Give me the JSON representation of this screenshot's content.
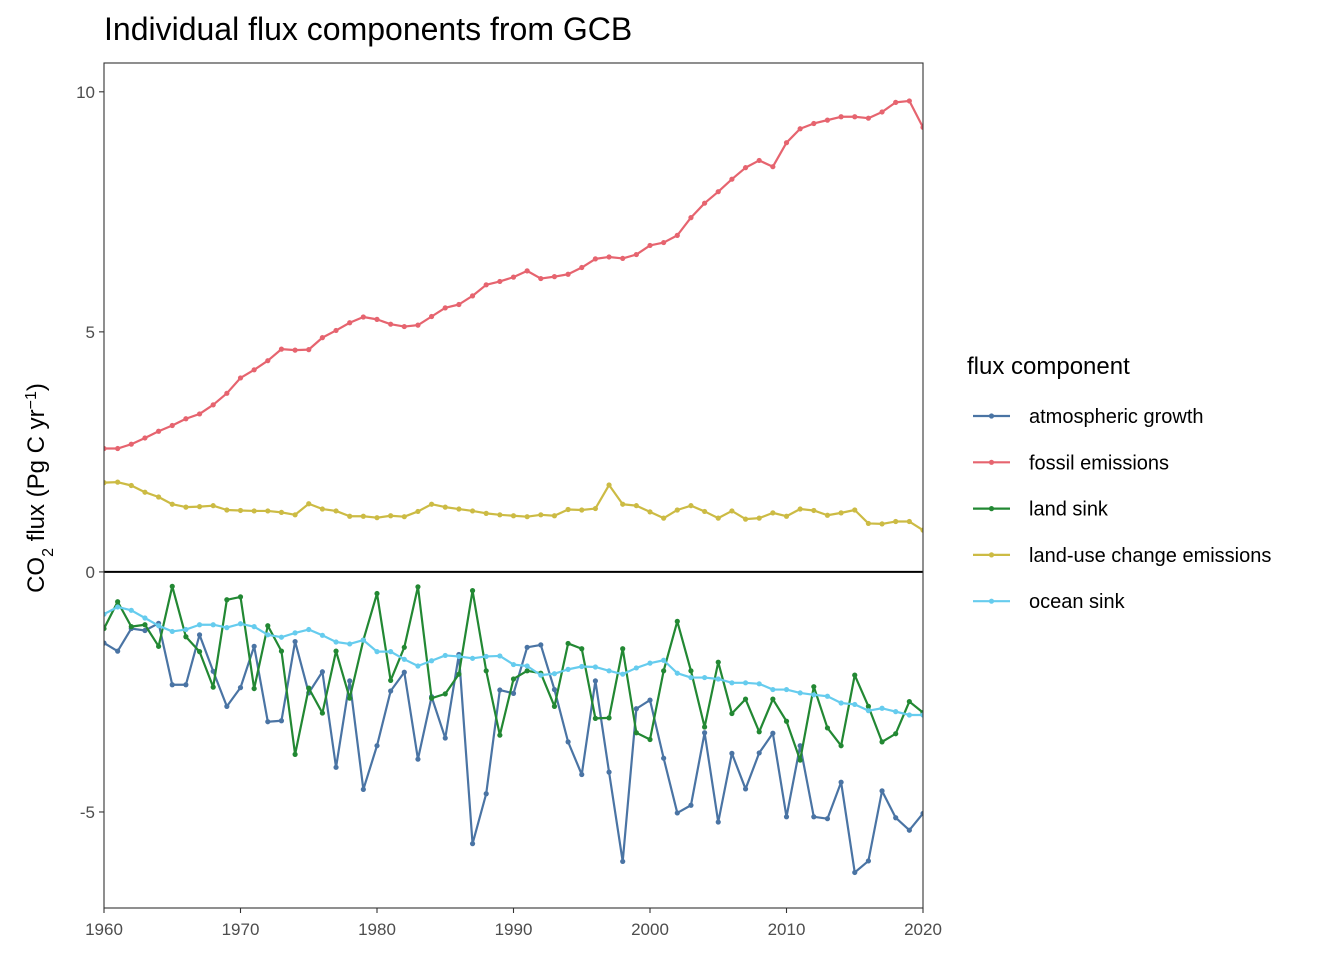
{
  "chart_data": {
    "type": "line",
    "title": "Individual flux components from GCB",
    "ylabel": {
      "prefix": "CO",
      "sub": "2",
      "mid": " flux (Pg C yr",
      "sup": "−1",
      "suffix": ")"
    },
    "xlabel": "",
    "xlim": [
      1960,
      2020
    ],
    "ylim": [
      -7,
      10.6
    ],
    "x_ticks": [
      1960,
      1970,
      1980,
      1990,
      2000,
      2010,
      2020
    ],
    "y_ticks": [
      {
        "value": 10,
        "label": "10"
      },
      {
        "value": 5,
        "label": "5"
      },
      {
        "value": 0,
        "label": "0"
      },
      {
        "value": -5,
        "label": "-5"
      }
    ],
    "zero_line": true,
    "grid": false,
    "legend": {
      "title": "flux component",
      "position": "right"
    },
    "x_start": 1960,
    "series": [
      {
        "name": "atmospheric growth",
        "color": "#4a74a4",
        "values": [
          -1.48,
          -1.65,
          -1.18,
          -1.22,
          -1.07,
          -2.35,
          -2.35,
          -1.31,
          -2.07,
          -2.8,
          -2.41,
          -1.55,
          -3.12,
          -3.1,
          -1.45,
          -2.52,
          -2.08,
          -4.07,
          -2.27,
          -4.53,
          -3.62,
          -2.48,
          -2.09,
          -3.9,
          -2.6,
          -3.46,
          -1.72,
          -5.66,
          -4.62,
          -2.46,
          -2.53,
          -1.57,
          -1.52,
          -2.45,
          -3.54,
          -4.22,
          -2.27,
          -4.17,
          -6.03,
          -2.85,
          -2.67,
          -3.88,
          -5.02,
          -4.86,
          -3.35,
          -5.21,
          -3.78,
          -4.52,
          -3.77,
          -3.36,
          -5.1,
          -3.62,
          -5.1,
          -5.14,
          -4.38,
          -6.26,
          -6.02,
          -4.56,
          -5.12,
          -5.38,
          -5.03
        ]
      },
      {
        "name": "fossil emissions",
        "color": "#e6646f",
        "values": [
          2.57,
          2.57,
          2.66,
          2.79,
          2.93,
          3.05,
          3.19,
          3.29,
          3.48,
          3.72,
          4.04,
          4.21,
          4.4,
          4.64,
          4.62,
          4.63,
          4.88,
          5.03,
          5.19,
          5.31,
          5.26,
          5.16,
          5.11,
          5.14,
          5.32,
          5.5,
          5.57,
          5.75,
          5.98,
          6.05,
          6.14,
          6.27,
          6.11,
          6.15,
          6.2,
          6.34,
          6.52,
          6.56,
          6.53,
          6.61,
          6.8,
          6.86,
          7.01,
          7.38,
          7.68,
          7.92,
          8.18,
          8.42,
          8.57,
          8.44,
          8.94,
          9.23,
          9.34,
          9.41,
          9.48,
          9.48,
          9.45,
          9.58,
          9.78,
          9.81,
          9.26
        ]
      },
      {
        "name": "land sink",
        "color": "#228833",
        "values": [
          -1.18,
          -0.62,
          -1.14,
          -1.1,
          -1.55,
          -0.3,
          -1.35,
          -1.66,
          -2.4,
          -0.58,
          -0.52,
          -2.43,
          -1.12,
          -1.65,
          -3.8,
          -2.42,
          -2.94,
          -1.65,
          -2.63,
          -1.42,
          -0.45,
          -2.26,
          -1.57,
          -0.31,
          -2.63,
          -2.54,
          -2.13,
          -0.39,
          -2.06,
          -3.4,
          -2.23,
          -2.06,
          -2.11,
          -2.8,
          -1.49,
          -1.6,
          -3.05,
          -3.04,
          -1.6,
          -3.35,
          -3.49,
          -2.06,
          -1.03,
          -2.06,
          -3.23,
          -1.88,
          -2.95,
          -2.65,
          -3.33,
          -2.65,
          -3.11,
          -3.92,
          -2.39,
          -3.25,
          -3.62,
          -2.15,
          -2.8,
          -3.54,
          -3.37,
          -2.7,
          -2.93
        ]
      },
      {
        "name": "land-use change emissions",
        "color": "#ccbb44",
        "values": [
          1.86,
          1.87,
          1.8,
          1.66,
          1.56,
          1.41,
          1.35,
          1.36,
          1.38,
          1.29,
          1.28,
          1.27,
          1.27,
          1.24,
          1.19,
          1.42,
          1.31,
          1.27,
          1.16,
          1.16,
          1.13,
          1.17,
          1.15,
          1.26,
          1.41,
          1.35,
          1.31,
          1.27,
          1.22,
          1.19,
          1.17,
          1.15,
          1.19,
          1.17,
          1.3,
          1.29,
          1.32,
          1.81,
          1.41,
          1.38,
          1.25,
          1.12,
          1.29,
          1.38,
          1.26,
          1.12,
          1.27,
          1.1,
          1.12,
          1.23,
          1.16,
          1.31,
          1.28,
          1.18,
          1.23,
          1.29,
          1.01,
          1.0,
          1.05,
          1.05,
          0.87
        ]
      },
      {
        "name": "ocean sink",
        "color": "#66ccee",
        "values": [
          -0.88,
          -0.73,
          -0.8,
          -0.96,
          -1.12,
          -1.24,
          -1.2,
          -1.1,
          -1.1,
          -1.16,
          -1.08,
          -1.14,
          -1.31,
          -1.36,
          -1.27,
          -1.2,
          -1.32,
          -1.46,
          -1.5,
          -1.42,
          -1.66,
          -1.66,
          -1.82,
          -1.96,
          -1.85,
          -1.74,
          -1.76,
          -1.8,
          -1.76,
          -1.75,
          -1.93,
          -1.96,
          -2.15,
          -2.12,
          -2.03,
          -1.97,
          -1.98,
          -2.06,
          -2.13,
          -2.0,
          -1.9,
          -1.84,
          -2.11,
          -2.2,
          -2.2,
          -2.23,
          -2.31,
          -2.31,
          -2.33,
          -2.45,
          -2.45,
          -2.52,
          -2.56,
          -2.59,
          -2.73,
          -2.76,
          -2.89,
          -2.84,
          -2.91,
          -2.98,
          -2.98
        ]
      }
    ]
  }
}
